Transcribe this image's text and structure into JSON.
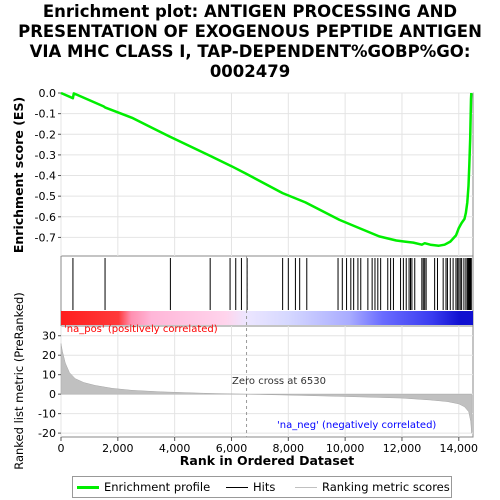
{
  "title_lines": [
    "Enrichment plot: ANTIGEN PROCESSING AND",
    "PRESENTATION OF EXOGENOUS PEPTIDE ANTIGEN",
    "VIA MHC CLASS I, TAP-DEPENDENT%GOBP%GO:",
    "0002479"
  ],
  "colors": {
    "enrichment": "#00ee00",
    "hits": "#000000",
    "ranking": "#c0c0c0",
    "pos_label": "#ff0000",
    "neg_label": "#0000ff"
  },
  "chart_data": {
    "type": "line",
    "xlabel": "Rank in Ordered Dataset",
    "x_ticks": [
      "0",
      "2,000",
      "4,000",
      "6,000",
      "8,000",
      "10,000",
      "12,000",
      "14,000"
    ],
    "x_tick_values": [
      0,
      2000,
      4000,
      6000,
      8000,
      10000,
      12000,
      14000
    ],
    "xlim": [
      0,
      14500
    ],
    "n_genes": 14450,
    "es_panel": {
      "ylabel": "Enrichment score (ES)",
      "y_ticks": [
        "0.0",
        "-0.1",
        "-0.2",
        "-0.3",
        "-0.4",
        "-0.5",
        "-0.6",
        "-0.7"
      ],
      "y_tick_values": [
        0,
        -0.1,
        -0.2,
        -0.3,
        -0.4,
        -0.5,
        -0.6,
        -0.7
      ],
      "ylim": [
        -0.79,
        0.0
      ],
      "series": [
        {
          "name": "Enrichment profile",
          "x": [
            0,
            420,
            450,
            1500,
            1550,
            2500,
            3800,
            5250,
            6000,
            6500,
            7800,
            8600,
            9800,
            10500,
            11200,
            11800,
            12100,
            12400,
            12700,
            12800,
            13000,
            13300,
            13500,
            13700,
            13900,
            14000,
            14100,
            14200,
            14250,
            14300,
            14340,
            14370,
            14400,
            14420,
            14430,
            14440
          ],
          "y": [
            0.0,
            -0.025,
            -0.002,
            -0.065,
            -0.07,
            -0.12,
            -0.21,
            -0.305,
            -0.355,
            -0.39,
            -0.485,
            -0.53,
            -0.615,
            -0.655,
            -0.695,
            -0.715,
            -0.72,
            -0.725,
            -0.735,
            -0.728,
            -0.735,
            -0.74,
            -0.735,
            -0.72,
            -0.69,
            -0.655,
            -0.63,
            -0.61,
            -0.58,
            -0.53,
            -0.45,
            -0.35,
            -0.22,
            -0.1,
            -0.03,
            0.0
          ]
        }
      ]
    },
    "hits_panel": {
      "name": "Hits",
      "positions": [
        420,
        1550,
        3850,
        5250,
        5950,
        6150,
        6350,
        6550,
        7800,
        8000,
        8250,
        8400,
        8650,
        9750,
        9900,
        10050,
        10200,
        10300,
        10450,
        10550,
        10800,
        10950,
        11050,
        11150,
        11250,
        11500,
        11600,
        11700,
        11950,
        12050,
        12150,
        12250,
        12300,
        12350,
        12450,
        12700,
        12750,
        12800,
        12850,
        13150,
        13250,
        13450,
        13550,
        13600,
        13700,
        13800,
        13900,
        13950,
        14000,
        14050,
        14100,
        14180,
        14250,
        14300,
        14330,
        14360,
        14390,
        14410,
        14425,
        14440
      ]
    },
    "ranking_panel": {
      "name": "Ranking metric scores",
      "ylabel": "Ranked list metric (PreRanked)",
      "y_ticks": [
        "30",
        "20",
        "10",
        "0",
        "-10",
        "-20"
      ],
      "y_tick_values": [
        30,
        20,
        10,
        0,
        -10,
        -20
      ],
      "ylim": [
        -22,
        35
      ],
      "x": [
        0,
        50,
        150,
        300,
        500,
        800,
        1200,
        1800,
        2500,
        3500,
        5000,
        6530,
        8000,
        10000,
        12000,
        13000,
        13600,
        14000,
        14200,
        14350,
        14420,
        14450
      ],
      "y": [
        26,
        22,
        16,
        11,
        8,
        6,
        4.5,
        3,
        2,
        1.2,
        0.5,
        0,
        -0.5,
        -1.2,
        -2,
        -3,
        -3.8,
        -5,
        -6.5,
        -9,
        -14,
        -20
      ],
      "zero_cross": 6530,
      "zero_cross_label": "Zero cross at 6530",
      "pos_label": "'na_pos' (positively correlated)",
      "neg_label": "'na_neg' (negatively correlated)"
    }
  },
  "legend": {
    "items": [
      {
        "label": "Enrichment profile"
      },
      {
        "label": "Hits"
      },
      {
        "label": "Ranking metric scores"
      }
    ]
  }
}
